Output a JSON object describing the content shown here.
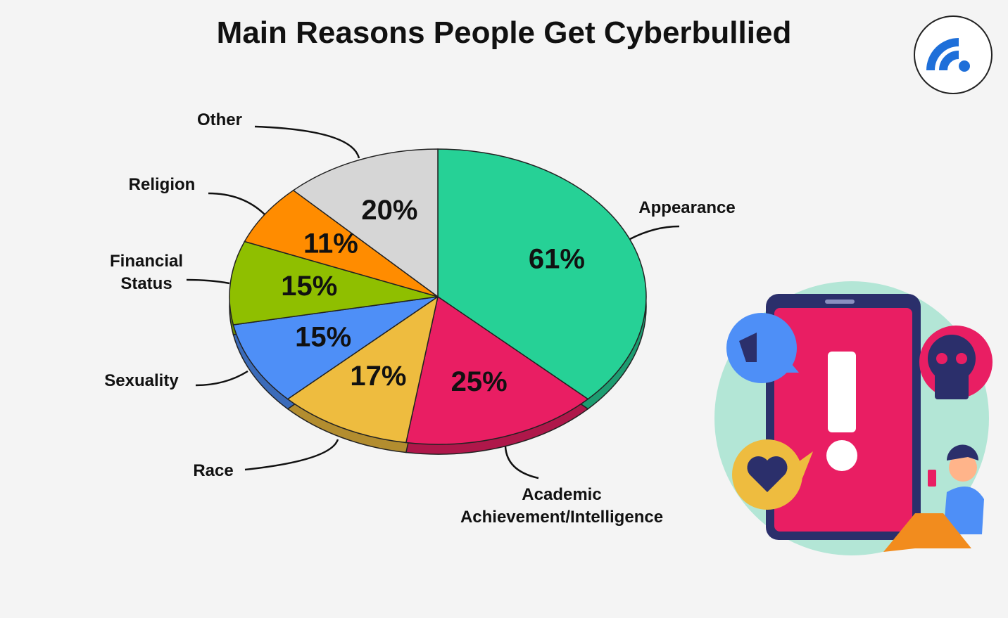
{
  "chart_data": {
    "type": "pie",
    "title": "Main Reasons People Get Cyberbullied",
    "categories": [
      "Appearance",
      "Academic Achievement/Intelligence",
      "Race",
      "Sexuality",
      "Financial Status",
      "Religion",
      "Other"
    ],
    "values": [
      61,
      25,
      17,
      15,
      15,
      11,
      20
    ],
    "value_labels": [
      "61%",
      "25%",
      "17%",
      "15%",
      "15%",
      "11%",
      "20%"
    ],
    "colors": [
      "#26d196",
      "#e91e63",
      "#eebc3f",
      "#4e8ff7",
      "#8fbf00",
      "#ff8c00",
      "#d6d6d6"
    ]
  }
}
